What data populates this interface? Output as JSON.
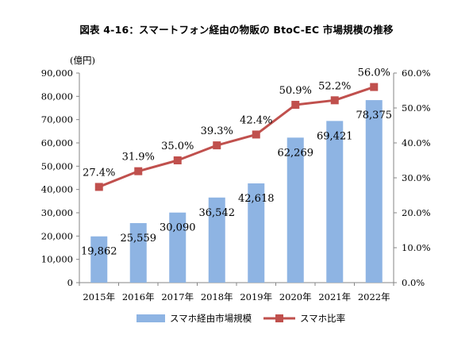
{
  "chart_data": {
    "type": "bar+line",
    "title": "図表 4-16：スマートフォン経由の物販の BtoC-EC 市場規模の推移",
    "y_unit_label": "(億円)",
    "categories": [
      "2015年",
      "2016年",
      "2017年",
      "2018年",
      "2019年",
      "2020年",
      "2021年",
      "2022年"
    ],
    "series": [
      {
        "name": "スマホ経由市場規模",
        "type": "bar",
        "axis": "left",
        "color": "#8EB4E3",
        "values": [
          19862,
          25559,
          30090,
          36542,
          42618,
          62269,
          69421,
          78375
        ],
        "labels": [
          "19,862",
          "25,559",
          "30,090",
          "36,542",
          "42,618",
          "62,269",
          "69,421",
          "78,375"
        ]
      },
      {
        "name": "スマホ比率",
        "type": "line",
        "axis": "right",
        "color": "#C0504D",
        "values": [
          27.4,
          31.9,
          35.0,
          39.3,
          42.4,
          50.9,
          52.2,
          56.0
        ],
        "labels": [
          "27.4%",
          "31.9%",
          "35.0%",
          "39.3%",
          "42.4%",
          "50.9%",
          "52.2%",
          "56.0%"
        ]
      }
    ],
    "y_left": {
      "min": 0,
      "max": 90000,
      "step": 10000,
      "ticks": [
        "0",
        "10,000",
        "20,000",
        "30,000",
        "40,000",
        "50,000",
        "60,000",
        "70,000",
        "80,000",
        "90,000"
      ]
    },
    "y_right": {
      "min": 0,
      "max": 60,
      "step": 10,
      "ticks": [
        "0.0%",
        "10.0%",
        "20.0%",
        "30.0%",
        "40.0%",
        "50.0%",
        "60.0%"
      ]
    },
    "grid": false,
    "legend": "bottom"
  }
}
